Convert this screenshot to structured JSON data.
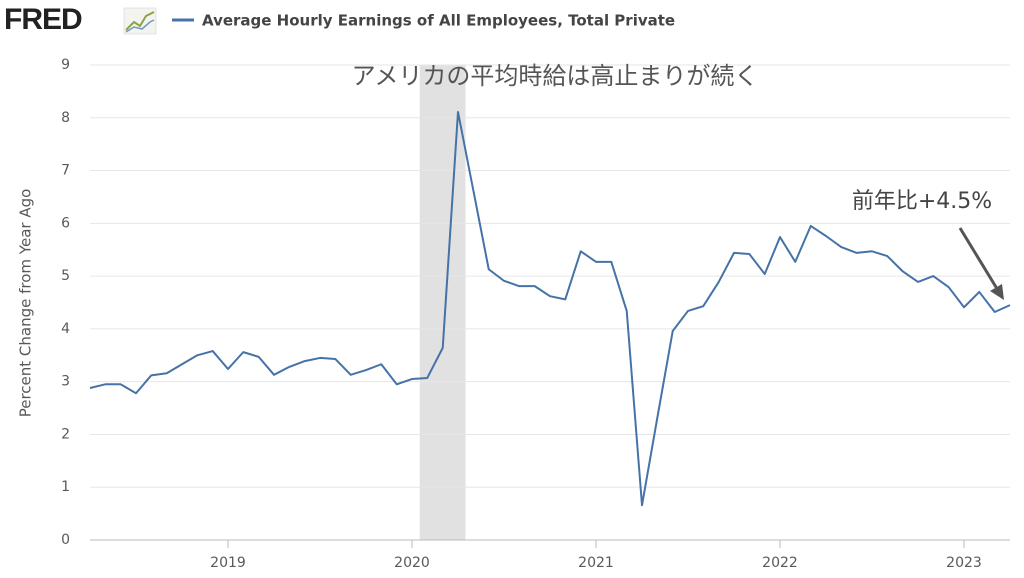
{
  "brand": "FRED",
  "chart_data": {
    "type": "line",
    "title": "アメリカの平均時給は高止まりが続く",
    "annotation": "前年比+4.5%",
    "y_label": "Percent Change from Year Ago",
    "x": [
      2018.25,
      2018.333,
      2018.417,
      2018.5,
      2018.583,
      2018.667,
      2018.75,
      2018.833,
      2018.917,
      2019,
      2019.083,
      2019.167,
      2019.25,
      2019.333,
      2019.417,
      2019.5,
      2019.583,
      2019.667,
      2019.75,
      2019.833,
      2019.917,
      2020,
      2020.083,
      2020.167,
      2020.25,
      2020.333,
      2020.417,
      2020.5,
      2020.583,
      2020.667,
      2020.75,
      2020.833,
      2020.917,
      2021,
      2021.083,
      2021.167,
      2021.25,
      2021.333,
      2021.417,
      2021.5,
      2021.583,
      2021.667,
      2021.75,
      2021.833,
      2021.917,
      2022,
      2022.083,
      2022.167,
      2022.25,
      2022.333,
      2022.417,
      2022.5,
      2022.583,
      2022.667,
      2022.75,
      2022.833,
      2022.917,
      2023,
      2023.083,
      2023.167,
      2023.25
    ],
    "series": [
      {
        "name": "Average Hourly Earnings of All Employees, Total Private",
        "color": "#4572a7",
        "values": [
          2.88,
          2.95,
          2.95,
          2.78,
          3.12,
          3.16,
          3.33,
          3.5,
          3.58,
          3.24,
          3.56,
          3.47,
          3.13,
          3.28,
          3.39,
          3.45,
          3.43,
          3.13,
          3.22,
          3.33,
          2.95,
          3.05,
          3.07,
          3.64,
          8.11,
          6.63,
          5.13,
          4.91,
          4.81,
          4.81,
          4.62,
          4.56,
          5.47,
          5.27,
          5.27,
          4.34,
          0.66,
          2.31,
          3.96,
          4.34,
          4.43,
          4.89,
          5.44,
          5.42,
          5.04,
          5.74,
          5.27,
          5.95,
          5.76,
          5.55,
          5.44,
          5.47,
          5.38,
          5.09,
          4.89,
          5.0,
          4.79,
          4.41,
          4.7,
          4.32,
          4.45
        ]
      }
    ],
    "recession": [
      2020.083,
      2020.25
    ],
    "xlim": [
      2018.25,
      2023.25
    ],
    "xticks": [
      2019,
      2020,
      2021,
      2022,
      2023
    ],
    "ylim": [
      0,
      9
    ],
    "yticks": [
      0,
      1,
      2,
      3,
      4,
      5,
      6,
      7,
      8,
      9
    ],
    "grid": true
  }
}
